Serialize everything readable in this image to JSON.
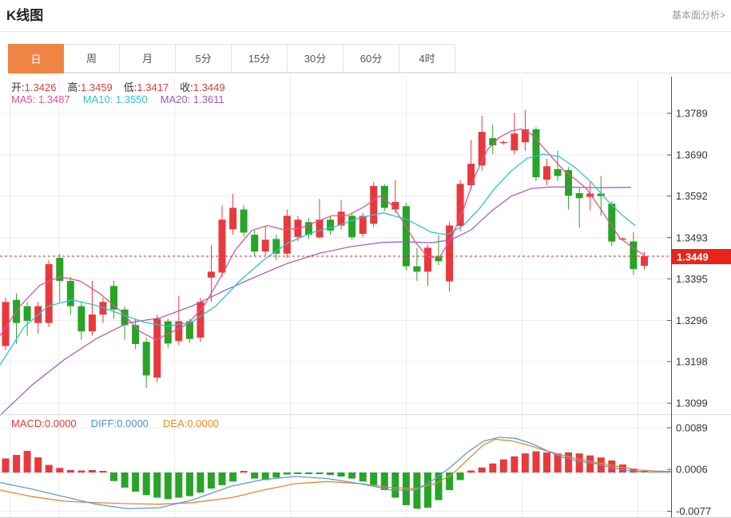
{
  "page": {
    "title": "K线图",
    "link": "基本面分析>"
  },
  "tabs": {
    "items": [
      {
        "label": "日",
        "active": true
      },
      {
        "label": "周",
        "active": false
      },
      {
        "label": "月",
        "active": false
      },
      {
        "label": "5分",
        "active": false
      },
      {
        "label": "15分",
        "active": false
      },
      {
        "label": "30分",
        "active": false
      },
      {
        "label": "60分",
        "active": false
      },
      {
        "label": "4时",
        "active": false
      }
    ]
  },
  "quote": {
    "open_label": "开:",
    "open": "1.3426",
    "high_label": "高:",
    "high": "1.3459",
    "low_label": "低:",
    "low": "1.3417",
    "close_label": "收:",
    "close": "1.3449"
  },
  "ma": {
    "ma5": "MA5: 1.3487",
    "ma10": "MA10: 1.3550",
    "ma20": "MA20: 1.3611"
  },
  "macd_info": {
    "macd": "MACD:0.0000",
    "diff": "DIFF:0.0000",
    "dea": "DEA:0.0000"
  },
  "colors": {
    "up": "#e8393d",
    "down": "#28a428",
    "ma5": "#e0548f",
    "ma10": "#2fc1d6",
    "ma20": "#9a57c8",
    "diff": "#5b9bd5",
    "dea": "#e8862c",
    "badge": "#e8251a",
    "grid": "#ececec",
    "axis": "#555555",
    "dotted": "#e8251a",
    "zero_dash": "#a8d8ea",
    "tab_active": "#ef8445"
  },
  "chart_data": {
    "type": "candlestick",
    "title": "K线图",
    "legend": [
      "MA5",
      "MA10",
      "MA20",
      "MACD",
      "DIFF",
      "DEA"
    ],
    "price_axis_labels": [
      "1.3789",
      "1.3690",
      "1.3592",
      "1.3493",
      "1.3395",
      "1.3296",
      "1.3198",
      "1.3099"
    ],
    "current_price": "1.3449",
    "current_price_value": 1.3449,
    "candles": [
      [
        1.3235,
        1.334,
        1.335,
        1.3225
      ],
      [
        1.3345,
        1.329,
        1.336,
        1.324
      ],
      [
        1.333,
        1.3295,
        1.334,
        1.326
      ],
      [
        1.329,
        1.333,
        1.334,
        1.3265
      ],
      [
        1.329,
        1.343,
        1.344,
        1.328
      ],
      [
        1.3445,
        1.339,
        1.3455,
        1.334
      ],
      [
        1.339,
        1.333,
        1.34,
        1.331
      ],
      [
        1.333,
        1.327,
        1.334,
        1.325
      ],
      [
        1.327,
        1.331,
        1.339,
        1.326
      ],
      [
        1.331,
        1.334,
        1.335,
        1.329
      ],
      [
        1.3378,
        1.3322,
        1.339,
        1.33
      ],
      [
        1.3322,
        1.3285,
        1.333,
        1.325
      ],
      [
        1.3285,
        1.324,
        1.33,
        1.3228
      ],
      [
        1.3245,
        1.3165,
        1.3255,
        1.3135
      ],
      [
        1.316,
        1.33,
        1.331,
        1.315
      ],
      [
        1.3294,
        1.3241,
        1.33,
        1.323
      ],
      [
        1.3247,
        1.3294,
        1.3355,
        1.3238
      ],
      [
        1.3294,
        1.3252,
        1.33,
        1.3242
      ],
      [
        1.3255,
        1.334,
        1.335,
        1.3245
      ],
      [
        1.3398,
        1.3412,
        1.3475,
        1.334
      ],
      [
        1.341,
        1.3536,
        1.357,
        1.34
      ],
      [
        1.3513,
        1.3564,
        1.3597,
        1.35
      ],
      [
        1.356,
        1.3505,
        1.357,
        1.3495
      ],
      [
        1.35,
        1.346,
        1.351,
        1.3448
      ],
      [
        1.346,
        1.3488,
        1.352,
        1.345
      ],
      [
        1.349,
        1.3455,
        1.35,
        1.344
      ],
      [
        1.3455,
        1.3545,
        1.356,
        1.3445
      ],
      [
        1.3495,
        1.3536,
        1.3545,
        1.3485
      ],
      [
        1.353,
        1.35,
        1.354,
        1.349
      ],
      [
        1.3494,
        1.3536,
        1.3585,
        1.349
      ],
      [
        1.3536,
        1.351,
        1.3545,
        1.35
      ],
      [
        1.3522,
        1.3555,
        1.3583,
        1.3512
      ],
      [
        1.3545,
        1.3494,
        1.355,
        1.3488
      ],
      [
        1.3502,
        1.3545,
        1.3552,
        1.3494
      ],
      [
        1.3526,
        1.3616,
        1.3626,
        1.3518
      ],
      [
        1.3616,
        1.3564,
        1.362,
        1.3556
      ],
      [
        1.356,
        1.3578,
        1.363,
        1.3552
      ],
      [
        1.3568,
        1.3425,
        1.3576,
        1.3415
      ],
      [
        1.3425,
        1.3412,
        1.3468,
        1.339
      ],
      [
        1.3412,
        1.3469,
        1.3476,
        1.3378
      ],
      [
        1.3448,
        1.3437,
        1.35,
        1.3428
      ],
      [
        1.3389,
        1.3522,
        1.353,
        1.3365
      ],
      [
        1.3521,
        1.3621,
        1.363,
        1.3508
      ],
      [
        1.3618,
        1.3669,
        1.3726,
        1.3608
      ],
      [
        1.3665,
        1.3745,
        1.3783,
        1.3652
      ],
      [
        1.373,
        1.3713,
        1.3762,
        1.3692
      ],
      [
        1.3719,
        1.3721,
        1.3724,
        1.3714
      ],
      [
        1.3701,
        1.3741,
        1.379,
        1.3692
      ],
      [
        1.372,
        1.3751,
        1.3797,
        1.37
      ],
      [
        1.3751,
        1.3637,
        1.3756,
        1.3628
      ],
      [
        1.3631,
        1.3663,
        1.3681,
        1.3618
      ],
      [
        1.3656,
        1.364,
        1.37,
        1.3628
      ],
      [
        1.3654,
        1.3593,
        1.3661,
        1.356
      ],
      [
        1.3599,
        1.3587,
        1.3612,
        1.3517
      ],
      [
        1.359,
        1.3598,
        1.3626,
        1.3558
      ],
      [
        1.3598,
        1.3592,
        1.364,
        1.3545
      ],
      [
        1.3574,
        1.3484,
        1.358,
        1.3473
      ],
      [
        1.3489,
        1.3491,
        1.3494,
        1.3486
      ],
      [
        1.3484,
        1.3418,
        1.3506,
        1.3404
      ],
      [
        1.3426,
        1.3449,
        1.3459,
        1.3417
      ]
    ],
    "ma5": [
      [
        0,
        1.326
      ],
      [
        25,
        1.333
      ],
      [
        50,
        1.338
      ],
      [
        75,
        1.34
      ],
      [
        100,
        1.339
      ],
      [
        125,
        1.336
      ],
      [
        150,
        1.332
      ],
      [
        175,
        1.327
      ],
      [
        195,
        1.325
      ],
      [
        215,
        1.3268
      ],
      [
        235,
        1.3288
      ],
      [
        255,
        1.333
      ],
      [
        275,
        1.3395
      ],
      [
        295,
        1.3465
      ],
      [
        315,
        1.351
      ],
      [
        335,
        1.3522
      ],
      [
        355,
        1.3512
      ],
      [
        375,
        1.3515
      ],
      [
        395,
        1.353
      ],
      [
        415,
        1.3545
      ],
      [
        435,
        1.3546
      ],
      [
        455,
        1.3566
      ],
      [
        475,
        1.3592
      ],
      [
        490,
        1.3572
      ],
      [
        505,
        1.353
      ],
      [
        520,
        1.3482
      ],
      [
        535,
        1.3448
      ],
      [
        550,
        1.3446
      ],
      [
        565,
        1.3492
      ],
      [
        580,
        1.356
      ],
      [
        595,
        1.3642
      ],
      [
        610,
        1.3702
      ],
      [
        625,
        1.3732
      ],
      [
        640,
        1.3747
      ],
      [
        652,
        1.3752
      ],
      [
        665,
        1.374
      ],
      [
        678,
        1.3712
      ],
      [
        692,
        1.3682
      ],
      [
        706,
        1.3652
      ],
      [
        720,
        1.3632
      ],
      [
        734,
        1.361
      ],
      [
        748,
        1.3572
      ],
      [
        762,
        1.3532
      ],
      [
        776,
        1.3492
      ],
      [
        793,
        1.3468
      ],
      [
        806,
        1.3452
      ]
    ],
    "ma10": [
      [
        0,
        1.319
      ],
      [
        30,
        1.328
      ],
      [
        60,
        1.333
      ],
      [
        90,
        1.3345
      ],
      [
        120,
        1.3332
      ],
      [
        150,
        1.3312
      ],
      [
        180,
        1.3292
      ],
      [
        210,
        1.3282
      ],
      [
        240,
        1.3292
      ],
      [
        270,
        1.333
      ],
      [
        300,
        1.339
      ],
      [
        330,
        1.344
      ],
      [
        360,
        1.348
      ],
      [
        390,
        1.3505
      ],
      [
        420,
        1.352
      ],
      [
        450,
        1.354
      ],
      [
        480,
        1.3552
      ],
      [
        510,
        1.3536
      ],
      [
        540,
        1.3506
      ],
      [
        560,
        1.35
      ],
      [
        580,
        1.3522
      ],
      [
        600,
        1.3562
      ],
      [
        620,
        1.3612
      ],
      [
        640,
        1.3652
      ],
      [
        660,
        1.3682
      ],
      [
        680,
        1.3692
      ],
      [
        700,
        1.3686
      ],
      [
        720,
        1.366
      ],
      [
        740,
        1.3625
      ],
      [
        760,
        1.3582
      ],
      [
        778,
        1.3548
      ],
      [
        795,
        1.3522
      ]
    ],
    "ma20": [
      [
        0,
        1.307
      ],
      [
        40,
        1.3142
      ],
      [
        80,
        1.3202
      ],
      [
        120,
        1.3252
      ],
      [
        160,
        1.329
      ],
      [
        200,
        1.3302
      ],
      [
        240,
        1.333
      ],
      [
        280,
        1.3366
      ],
      [
        320,
        1.34
      ],
      [
        360,
        1.3432
      ],
      [
        400,
        1.3456
      ],
      [
        440,
        1.3472
      ],
      [
        480,
        1.3482
      ],
      [
        510,
        1.3483
      ],
      [
        540,
        1.3481
      ],
      [
        565,
        1.3488
      ],
      [
        590,
        1.3512
      ],
      [
        615,
        1.3556
      ],
      [
        640,
        1.3592
      ],
      [
        665,
        1.361
      ],
      [
        690,
        1.3614
      ],
      [
        720,
        1.3613
      ],
      [
        750,
        1.3612
      ],
      [
        790,
        1.3613
      ]
    ],
    "macd": {
      "axis_labels": [
        "0.0089",
        "0.0006",
        "-0.0077"
      ],
      "histogram": [
        0.0028,
        0.0035,
        0.0043,
        0.003,
        0.0015,
        0.0009,
        0.0005,
        0.0004,
        0.0005,
        0.0003,
        -0.0017,
        -0.003,
        -0.0038,
        -0.0045,
        -0.005,
        -0.0053,
        -0.005,
        -0.0047,
        -0.004,
        -0.0032,
        -0.0025,
        -0.0018,
        0.0002,
        -0.0012,
        -0.0015,
        -0.001,
        -0.0004,
        -0.0003,
        -0.0002,
        -0.0003,
        -0.0005,
        -0.0008,
        -0.0012,
        -0.0018,
        -0.0025,
        -0.0035,
        -0.005,
        -0.0065,
        -0.0072,
        -0.007,
        -0.0055,
        -0.0035,
        -0.0015,
        0.0004,
        0.001,
        0.0018,
        0.0026,
        0.0032,
        0.0038,
        0.0042,
        0.004,
        0.0038,
        0.004,
        0.0038,
        0.0034,
        0.003,
        0.0024,
        0.0016,
        0.0008,
        0.0003
      ],
      "diff": [
        [
          0,
          -0.002
        ],
        [
          40,
          -0.0033
        ],
        [
          80,
          -0.0048
        ],
        [
          120,
          -0.0063
        ],
        [
          160,
          -0.0072
        ],
        [
          200,
          -0.007
        ],
        [
          240,
          -0.0055
        ],
        [
          290,
          -0.0027
        ],
        [
          330,
          -0.0014
        ],
        [
          370,
          -0.0008
        ],
        [
          410,
          -0.0012
        ],
        [
          450,
          -0.0022
        ],
        [
          490,
          -0.0035
        ],
        [
          520,
          -0.0035
        ],
        [
          545,
          -0.0012
        ],
        [
          565,
          0.0012
        ],
        [
          585,
          0.004
        ],
        [
          605,
          0.0062
        ],
        [
          625,
          0.007
        ],
        [
          645,
          0.0068
        ],
        [
          665,
          0.0058
        ],
        [
          685,
          0.0043
        ],
        [
          705,
          0.003
        ],
        [
          725,
          0.0022
        ],
        [
          745,
          0.0018
        ],
        [
          765,
          0.001
        ],
        [
          785,
          0.0004
        ],
        [
          810,
          0.0001
        ],
        [
          840,
          0.0001
        ]
      ],
      "dea": [
        [
          0,
          -0.0035
        ],
        [
          40,
          -0.0048
        ],
        [
          80,
          -0.0057
        ],
        [
          120,
          -0.006
        ],
        [
          160,
          -0.0062
        ],
        [
          200,
          -0.0063
        ],
        [
          240,
          -0.006
        ],
        [
          290,
          -0.005
        ],
        [
          330,
          -0.0035
        ],
        [
          370,
          -0.0022
        ],
        [
          410,
          -0.0018
        ],
        [
          450,
          -0.0022
        ],
        [
          490,
          -0.003
        ],
        [
          520,
          -0.0032
        ],
        [
          545,
          -0.0022
        ],
        [
          565,
          -0.0005
        ],
        [
          585,
          0.0025
        ],
        [
          605,
          0.0055
        ],
        [
          620,
          0.0066
        ],
        [
          640,
          0.0063
        ],
        [
          660,
          0.0055
        ],
        [
          680,
          0.0045
        ],
        [
          700,
          0.0036
        ],
        [
          720,
          0.0028
        ],
        [
          740,
          0.0022
        ],
        [
          760,
          0.0016
        ],
        [
          780,
          0.001
        ],
        [
          800,
          0.0005
        ],
        [
          820,
          0.0003
        ],
        [
          840,
          0.0002
        ]
      ]
    }
  }
}
